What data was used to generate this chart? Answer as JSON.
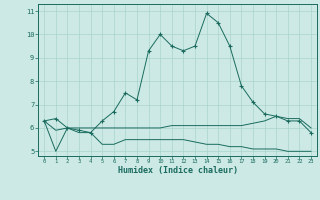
{
  "xlabel": "Humidex (Indice chaleur)",
  "xlim": [
    -0.5,
    23.5
  ],
  "ylim": [
    4.8,
    11.3
  ],
  "yticks": [
    5,
    6,
    7,
    8,
    9,
    10,
    11
  ],
  "xticks": [
    0,
    1,
    2,
    3,
    4,
    5,
    6,
    7,
    8,
    9,
    10,
    11,
    12,
    13,
    14,
    15,
    16,
    17,
    18,
    19,
    20,
    21,
    22,
    23
  ],
  "bg_color": "#cce9e5",
  "line_color": "#1a6b5e",
  "grid_color": "#aad4ce",
  "line1_x": [
    0,
    1,
    2,
    3,
    4,
    5,
    6,
    7,
    8,
    9,
    10,
    11,
    12,
    13,
    14,
    15,
    16,
    17,
    18,
    19,
    20,
    21,
    22,
    23
  ],
  "line1_y": [
    6.3,
    6.4,
    6.0,
    5.9,
    5.8,
    6.3,
    6.7,
    7.5,
    7.2,
    9.3,
    10.0,
    9.5,
    9.3,
    9.5,
    10.9,
    10.5,
    9.5,
    7.8,
    7.1,
    6.6,
    6.5,
    6.3,
    6.3,
    5.8
  ],
  "line2_x": [
    0,
    1,
    2,
    3,
    4,
    5,
    6,
    7,
    8,
    9,
    10,
    11,
    12,
    13,
    14,
    15,
    16,
    17,
    18,
    19,
    20,
    21,
    22,
    23
  ],
  "line2_y": [
    6.3,
    5.0,
    6.0,
    5.8,
    5.8,
    5.3,
    5.3,
    5.5,
    5.5,
    5.5,
    5.5,
    5.5,
    5.5,
    5.4,
    5.3,
    5.3,
    5.2,
    5.2,
    5.1,
    5.1,
    5.1,
    5.0,
    5.0,
    5.0
  ],
  "line3_x": [
    0,
    1,
    2,
    3,
    4,
    5,
    6,
    7,
    8,
    9,
    10,
    11,
    12,
    13,
    14,
    15,
    16,
    17,
    18,
    19,
    20,
    21,
    22,
    23
  ],
  "line3_y": [
    6.3,
    5.9,
    6.0,
    6.0,
    6.0,
    6.0,
    6.0,
    6.0,
    6.0,
    6.0,
    6.0,
    6.1,
    6.1,
    6.1,
    6.1,
    6.1,
    6.1,
    6.1,
    6.2,
    6.3,
    6.5,
    6.4,
    6.4,
    6.0
  ]
}
